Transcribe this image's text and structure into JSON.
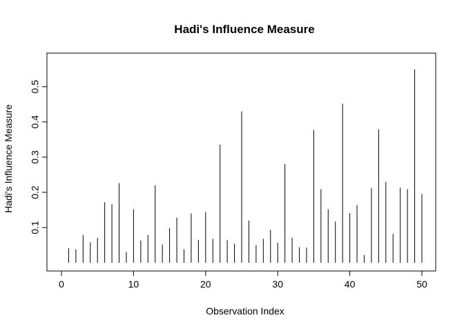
{
  "chart_data": {
    "type": "bar",
    "style": "spike",
    "title": "Hadi's Influence Measure",
    "xlabel": "Observation Index",
    "ylabel": "Hadi's Influence Measure",
    "xlim": [
      0,
      51
    ],
    "ylim": [
      0,
      0.57
    ],
    "xticks": [
      0,
      10,
      20,
      30,
      40,
      50
    ],
    "yticks": [
      0.1,
      0.2,
      0.3,
      0.4,
      0.5
    ],
    "x": [
      1,
      2,
      3,
      4,
      5,
      6,
      7,
      8,
      9,
      10,
      11,
      12,
      13,
      14,
      15,
      16,
      17,
      18,
      19,
      20,
      21,
      22,
      23,
      24,
      25,
      26,
      27,
      28,
      29,
      30,
      31,
      32,
      33,
      34,
      35,
      36,
      37,
      38,
      39,
      40,
      41,
      42,
      43,
      44,
      45,
      46,
      47,
      48,
      49,
      50
    ],
    "values": [
      0.041,
      0.038,
      0.079,
      0.058,
      0.071,
      0.172,
      0.166,
      0.226,
      0.031,
      0.152,
      0.063,
      0.079,
      0.22,
      0.052,
      0.098,
      0.128,
      0.038,
      0.14,
      0.065,
      0.144,
      0.068,
      0.335,
      0.064,
      0.054,
      0.43,
      0.12,
      0.05,
      0.068,
      0.093,
      0.057,
      0.28,
      0.071,
      0.044,
      0.043,
      0.377,
      0.209,
      0.152,
      0.117,
      0.452,
      0.141,
      0.164,
      0.022,
      0.212,
      0.379,
      0.23,
      0.082,
      0.213,
      0.209,
      0.549,
      0.195
    ],
    "grid": false,
    "legend": "none"
  }
}
